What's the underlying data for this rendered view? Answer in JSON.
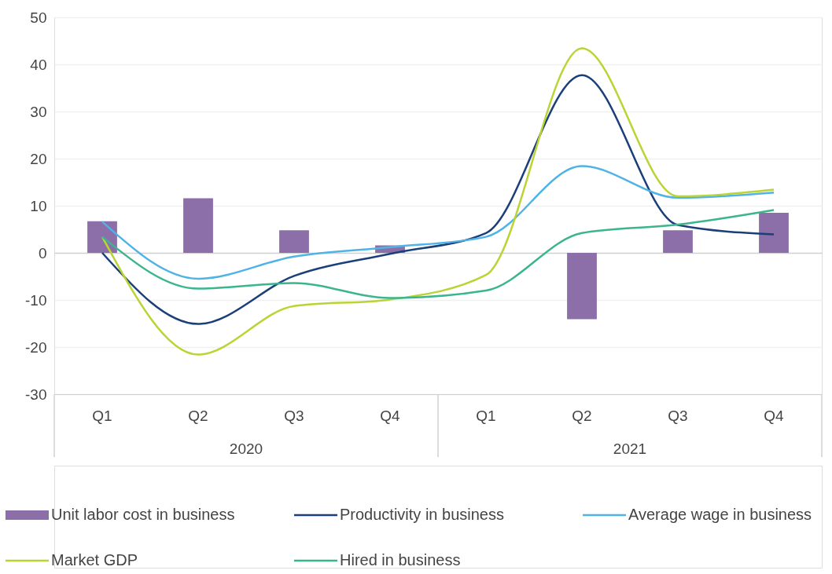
{
  "chart_data": {
    "type": "line",
    "categories": [
      "Q1",
      "Q2",
      "Q3",
      "Q4",
      "Q1",
      "Q2",
      "Q3",
      "Q4"
    ],
    "series": [
      {
        "name": "Unit labor cost in business",
        "type": "bar",
        "color": "#8c6fa9",
        "values": [
          6.7,
          11.6,
          4.8,
          1.6,
          null,
          -14.1,
          4.8,
          8.5
        ]
      },
      {
        "name": "Productivity  in business",
        "color": "#1b3f7a",
        "values": [
          0,
          -15.1,
          -4.9,
          -0.2,
          4.2,
          37.7,
          5.9,
          3.9
        ]
      },
      {
        "name": "Average wage in business",
        "color": "#4fb3e6",
        "values": [
          6.6,
          -5.5,
          -0.8,
          1.2,
          3.4,
          18.4,
          11.7,
          12.8
        ]
      },
      {
        "name": "Market GDP",
        "color": "#b9d433",
        "values": [
          3.4,
          -21.6,
          -11.3,
          -9.9,
          -4.7,
          43.4,
          12.0,
          13.4
        ]
      },
      {
        "name": "Hired in business",
        "color": "#3bb58e",
        "values": [
          3.4,
          -7.6,
          -6.4,
          -9.6,
          -8.0,
          4.2,
          6.0,
          9.1
        ]
      }
    ],
    "ylim": [
      -30,
      50
    ],
    "yticks": [
      -30,
      -20,
      -10,
      0,
      10,
      20,
      30,
      40,
      50
    ],
    "annotations": [
      "2020",
      "2021"
    ],
    "grid": "y",
    "legend": "bottom",
    "marker": "none",
    "line_style": "solid"
  }
}
